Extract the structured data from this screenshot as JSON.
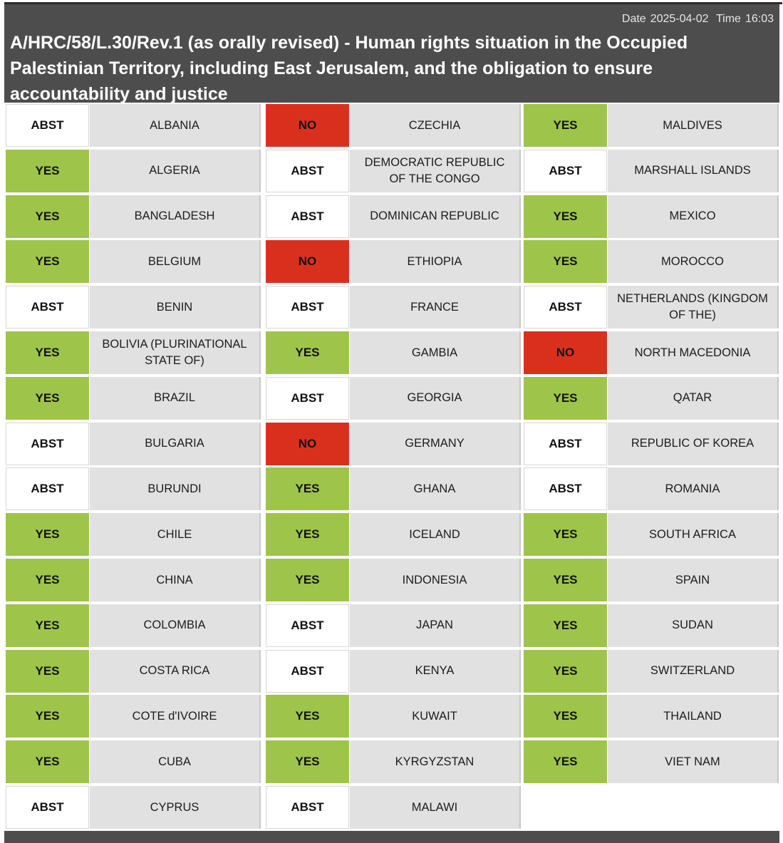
{
  "header": {
    "date_label": "Date",
    "date": "2025-04-02",
    "time_label": "Time",
    "time": "16:03",
    "title": "A/HRC/58/L.30/Rev.1 (as orally revised) - Human rights situation in the Occupied Palestinian Territory, including East Jerusalem, and the obligation to ensure accountability and justice"
  },
  "columns": [
    [
      {
        "vote": "ABST",
        "country": "ALBANIA"
      },
      {
        "vote": "YES",
        "country": "ALGERIA"
      },
      {
        "vote": "YES",
        "country": "BANGLADESH"
      },
      {
        "vote": "YES",
        "country": "BELGIUM"
      },
      {
        "vote": "ABST",
        "country": "BENIN"
      },
      {
        "vote": "YES",
        "country": "BOLIVIA (PLURINATIONAL STATE OF)"
      },
      {
        "vote": "YES",
        "country": "BRAZIL"
      },
      {
        "vote": "ABST",
        "country": "BULGARIA"
      },
      {
        "vote": "ABST",
        "country": "BURUNDI"
      },
      {
        "vote": "YES",
        "country": "CHILE"
      },
      {
        "vote": "YES",
        "country": "CHINA"
      },
      {
        "vote": "YES",
        "country": "COLOMBIA"
      },
      {
        "vote": "YES",
        "country": "COSTA RICA"
      },
      {
        "vote": "YES",
        "country": "COTE d'IVOIRE"
      },
      {
        "vote": "YES",
        "country": "CUBA"
      },
      {
        "vote": "ABST",
        "country": "CYPRUS"
      }
    ],
    [
      {
        "vote": "NO",
        "country": "CZECHIA"
      },
      {
        "vote": "ABST",
        "country": "DEMOCRATIC REPUBLIC OF THE CONGO"
      },
      {
        "vote": "ABST",
        "country": "DOMINICAN REPUBLIC"
      },
      {
        "vote": "NO",
        "country": "ETHIOPIA"
      },
      {
        "vote": "ABST",
        "country": "FRANCE"
      },
      {
        "vote": "YES",
        "country": "GAMBIA"
      },
      {
        "vote": "ABST",
        "country": "GEORGIA"
      },
      {
        "vote": "NO",
        "country": "GERMANY"
      },
      {
        "vote": "YES",
        "country": "GHANA"
      },
      {
        "vote": "YES",
        "country": "ICELAND"
      },
      {
        "vote": "YES",
        "country": "INDONESIA"
      },
      {
        "vote": "ABST",
        "country": "JAPAN"
      },
      {
        "vote": "ABST",
        "country": "KENYA"
      },
      {
        "vote": "YES",
        "country": "KUWAIT"
      },
      {
        "vote": "YES",
        "country": "KYRGYZSTAN"
      },
      {
        "vote": "ABST",
        "country": "MALAWI"
      }
    ],
    [
      {
        "vote": "YES",
        "country": "MALDIVES"
      },
      {
        "vote": "ABST",
        "country": "MARSHALL ISLANDS"
      },
      {
        "vote": "YES",
        "country": "MEXICO"
      },
      {
        "vote": "YES",
        "country": "MOROCCO"
      },
      {
        "vote": "ABST",
        "country": "NETHERLANDS (KINGDOM OF THE)"
      },
      {
        "vote": "NO",
        "country": "NORTH MACEDONIA"
      },
      {
        "vote": "YES",
        "country": "QATAR"
      },
      {
        "vote": "ABST",
        "country": "REPUBLIC OF KOREA"
      },
      {
        "vote": "ABST",
        "country": "ROMANIA"
      },
      {
        "vote": "YES",
        "country": "SOUTH AFRICA"
      },
      {
        "vote": "YES",
        "country": "SPAIN"
      },
      {
        "vote": "YES",
        "country": "SUDAN"
      },
      {
        "vote": "YES",
        "country": "SWITZERLAND"
      },
      {
        "vote": "YES",
        "country": "THAILAND"
      },
      {
        "vote": "YES",
        "country": "VIET NAM"
      }
    ]
  ]
}
